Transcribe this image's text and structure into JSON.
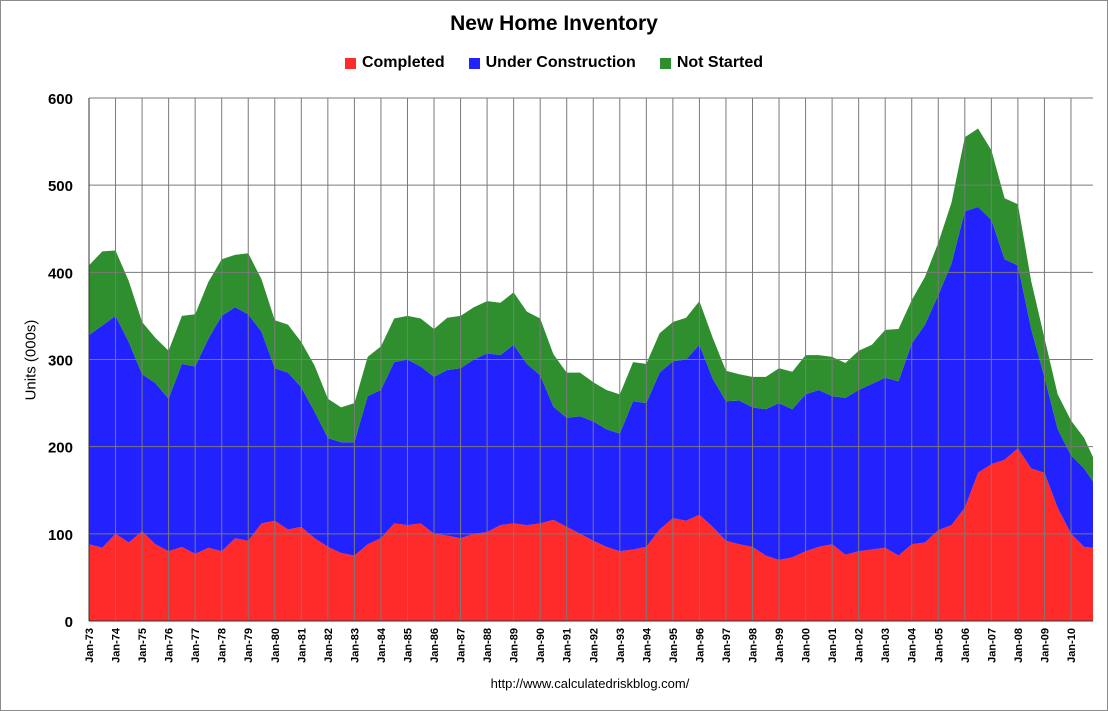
{
  "chart_data": {
    "type": "area",
    "stacked": true,
    "title": "New Home Inventory",
    "xlabel": "",
    "ylabel": "Units (000s)",
    "ylim": [
      0,
      600
    ],
    "yticks": [
      "0",
      "100",
      "200",
      "300",
      "400",
      "500",
      "600"
    ],
    "xticks": [
      "Jan-73",
      "Jan-74",
      "Jan-75",
      "Jan-76",
      "Jan-77",
      "Jan-78",
      "Jan-79",
      "Jan-80",
      "Jan-81",
      "Jan-82",
      "Jan-83",
      "Jan-84",
      "Jan-85",
      "Jan-86",
      "Jan-87",
      "Jan-88",
      "Jan-89",
      "Jan-90",
      "Jan-91",
      "Jan-92",
      "Jan-93",
      "Jan-94",
      "Jan-95",
      "Jan-96",
      "Jan-97",
      "Jan-98",
      "Jan-99",
      "Jan-00",
      "Jan-01",
      "Jan-02",
      "Jan-03",
      "Jan-04",
      "Jan-05",
      "Jan-06",
      "Jan-07",
      "Jan-08",
      "Jan-09",
      "Jan-10"
    ],
    "grid": true,
    "legend_position": "top-center",
    "x": [
      1973.0,
      1973.5,
      1974.0,
      1974.5,
      1975.0,
      1975.5,
      1976.0,
      1976.5,
      1977.0,
      1977.5,
      1978.0,
      1978.5,
      1979.0,
      1979.5,
      1980.0,
      1980.5,
      1981.0,
      1981.5,
      1982.0,
      1982.5,
      1983.0,
      1983.5,
      1984.0,
      1984.5,
      1985.0,
      1985.5,
      1986.0,
      1986.5,
      1987.0,
      1987.5,
      1988.0,
      1988.5,
      1989.0,
      1989.5,
      1990.0,
      1990.5,
      1991.0,
      1991.5,
      1992.0,
      1992.5,
      1993.0,
      1993.5,
      1994.0,
      1994.5,
      1995.0,
      1995.5,
      1996.0,
      1996.5,
      1997.0,
      1997.5,
      1998.0,
      1998.5,
      1999.0,
      1999.5,
      2000.0,
      2000.5,
      2001.0,
      2001.5,
      2002.0,
      2002.5,
      2003.0,
      2003.5,
      2004.0,
      2004.5,
      2005.0,
      2005.5,
      2006.0,
      2006.5,
      2007.0,
      2007.5,
      2008.0,
      2008.5,
      2009.0,
      2009.5,
      2010.0,
      2010.5,
      2010.83
    ],
    "series": [
      {
        "name": "Completed",
        "color": "#ff2a2a",
        "values": [
          88,
          84,
          100,
          90,
          103,
          88,
          80,
          85,
          77,
          84,
          80,
          95,
          92,
          112,
          115,
          105,
          108,
          95,
          85,
          78,
          75,
          88,
          95,
          112,
          110,
          112,
          100,
          98,
          95,
          100,
          102,
          110,
          112,
          110,
          112,
          116,
          108,
          100,
          92,
          85,
          80,
          82,
          85,
          105,
          118,
          115,
          122,
          108,
          92,
          88,
          85,
          75,
          70,
          73,
          80,
          85,
          88,
          76,
          80,
          82,
          84,
          75,
          88,
          90,
          104,
          110,
          130,
          170,
          180,
          185,
          198,
          175,
          170,
          130,
          100,
          85,
          84
        ]
      },
      {
        "name": "Under Construction",
        "color": "#2222ff",
        "values": [
          240,
          255,
          250,
          230,
          180,
          185,
          175,
          210,
          215,
          240,
          270,
          265,
          260,
          220,
          175,
          180,
          160,
          145,
          125,
          127,
          130,
          170,
          170,
          185,
          190,
          180,
          180,
          190,
          195,
          200,
          205,
          195,
          205,
          185,
          170,
          130,
          125,
          135,
          137,
          135,
          135,
          170,
          165,
          180,
          180,
          185,
          195,
          170,
          160,
          165,
          160,
          168,
          180,
          170,
          180,
          180,
          170,
          180,
          185,
          190,
          195,
          200,
          230,
          250,
          270,
          300,
          340,
          305,
          280,
          230,
          210,
          160,
          110,
          90,
          90,
          90,
          76
        ]
      },
      {
        "name": "Not Started",
        "color": "#2f8f2f",
        "values": [
          80,
          85,
          75,
          70,
          60,
          52,
          55,
          55,
          60,
          65,
          65,
          60,
          70,
          60,
          55,
          55,
          52,
          53,
          45,
          40,
          45,
          45,
          50,
          50,
          50,
          55,
          55,
          60,
          60,
          60,
          60,
          60,
          60,
          60,
          65,
          60,
          52,
          50,
          45,
          45,
          45,
          45,
          45,
          45,
          45,
          48,
          50,
          47,
          35,
          30,
          35,
          37,
          40,
          43,
          45,
          40,
          45,
          40,
          45,
          45,
          55,
          60,
          50,
          55,
          60,
          70,
          85,
          90,
          80,
          70,
          70,
          55,
          45,
          40,
          40,
          35,
          28
        ]
      }
    ]
  },
  "source_url": "http://www.calculatedriskblog.com/"
}
